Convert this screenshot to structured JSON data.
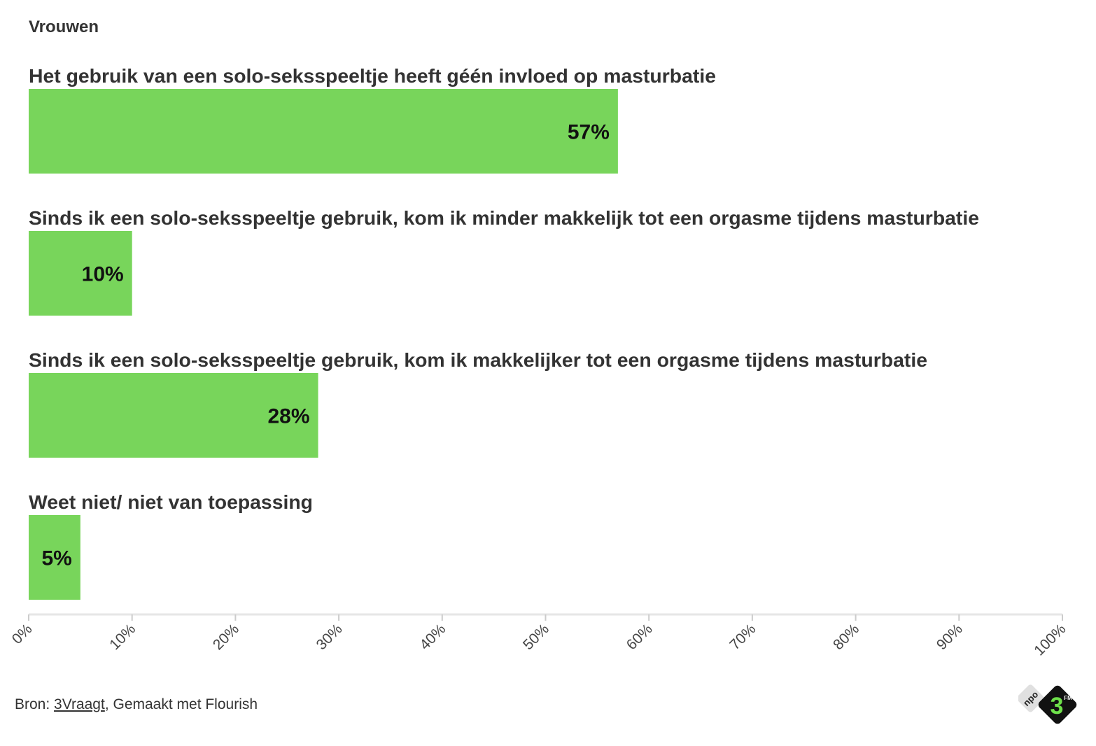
{
  "chart_data": {
    "type": "bar",
    "orientation": "horizontal",
    "subtitle": "Vrouwen",
    "categories": [
      "Het gebruik van een solo-seksspeeltje heeft géén invloed op masturbatie",
      "Sinds ik een solo-seksspeeltje gebruik, kom ik minder makkelijk tot een orgasme tijdens masturbatie",
      "Sinds ik een solo-seksspeeltje gebruik, kom ik makkelijker tot een orgasme tijdens masturbatie",
      "Weet niet/ niet van toepassing"
    ],
    "values": [
      57,
      10,
      28,
      5
    ],
    "value_labels": [
      "57%",
      "10%",
      "28%",
      "5%"
    ],
    "xlim": [
      0,
      100
    ],
    "x_ticks": [
      "0%",
      "10%",
      "20%",
      "30%",
      "40%",
      "50%",
      "60%",
      "70%",
      "80%",
      "90%",
      "100%"
    ],
    "bar_color": "#78d55b",
    "grid": false
  },
  "footer": {
    "prefix": "Bron: ",
    "source_link": "3Vraagt",
    "suffix": ", Gemaakt met Flourish"
  },
  "logo": {
    "icon": "npo-3fm-logo",
    "text_npo": "npo",
    "text_3": "3",
    "text_fm": "FM"
  }
}
